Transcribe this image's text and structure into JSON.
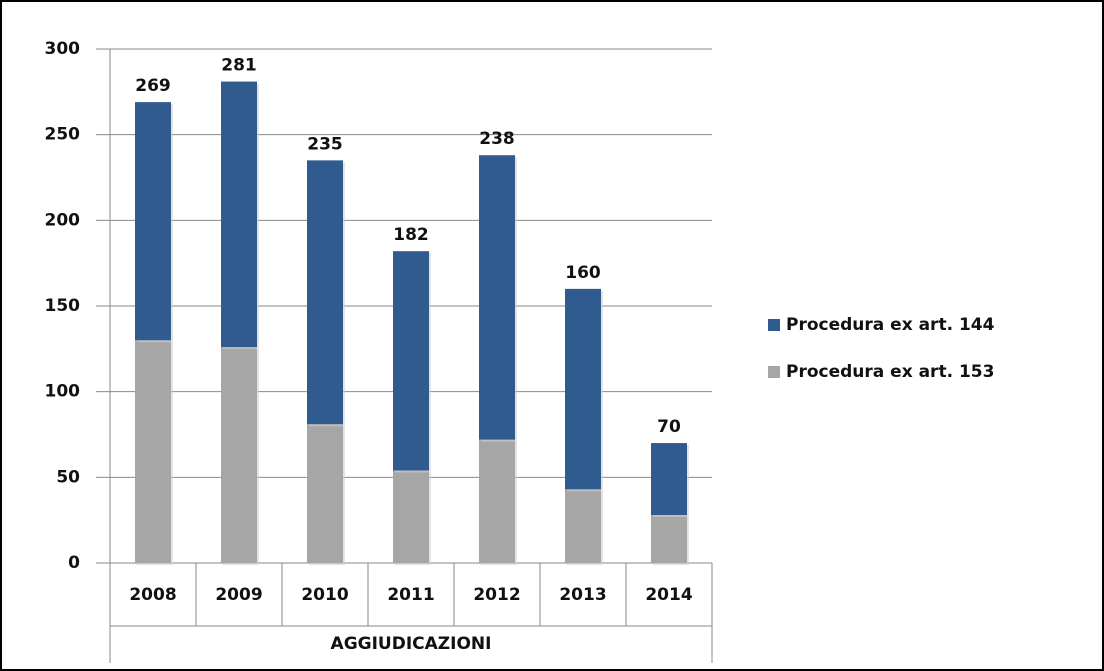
{
  "chart_data": {
    "type": "stacked_bar",
    "categories": [
      "2008",
      "2009",
      "2010",
      "2011",
      "2012",
      "2013",
      "2014"
    ],
    "x_group_label": "AGGIUDICAZIONI",
    "series": [
      {
        "name": "Procedura ex art. 153",
        "color": "#a6a6a6",
        "values": [
          130,
          126,
          81,
          54,
          72,
          43,
          28
        ]
      },
      {
        "name": "Procedura ex art. 144",
        "color": "#2f5b8f",
        "values": [
          139,
          155,
          154,
          128,
          166,
          117,
          42
        ]
      }
    ],
    "totals": [
      269,
      281,
      235,
      182,
      238,
      160,
      70
    ],
    "ylim": [
      0,
      300
    ],
    "yticks": [
      0,
      50,
      100,
      150,
      200,
      250,
      300
    ],
    "grid": true,
    "legend": "right"
  }
}
